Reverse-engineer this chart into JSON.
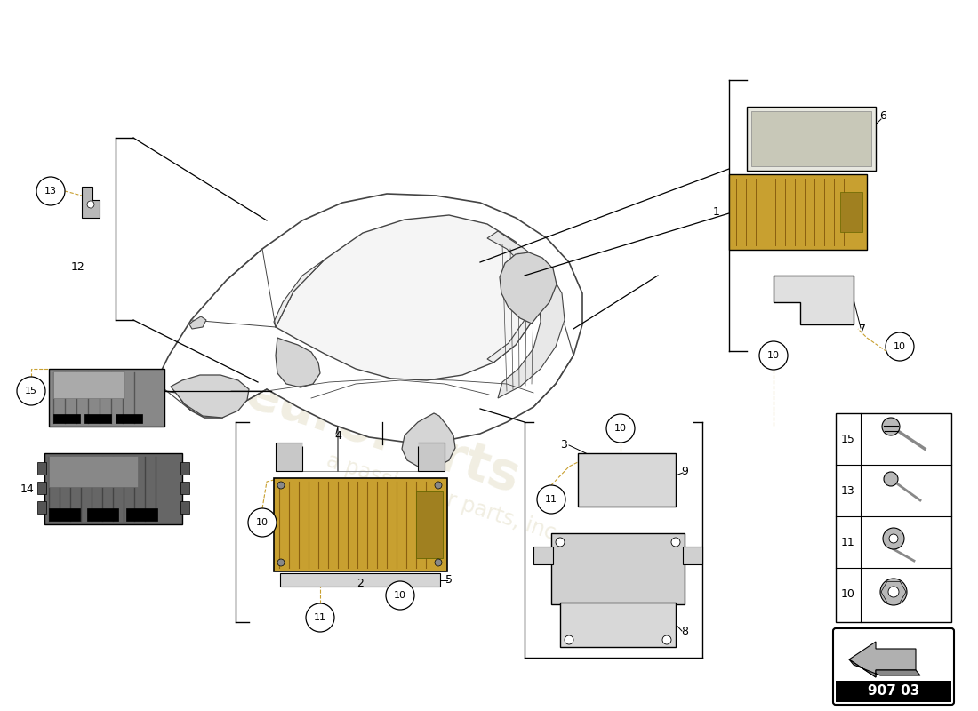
{
  "bg_color": "#ffffff",
  "fig_w": 11.0,
  "fig_h": 8.0,
  "dpi": 100,
  "watermark1": "euroParts",
  "watermark2": "a passion for parts, inc.",
  "part_code": "907 03",
  "car_color": "#e8e8e8",
  "car_edge": "#444444",
  "part_color_gold": "#c8a030",
  "part_color_light": "#d0d0d0",
  "part_color_white": "#f0f0f0",
  "legend_items": [
    "15",
    "13",
    "11",
    "10"
  ]
}
